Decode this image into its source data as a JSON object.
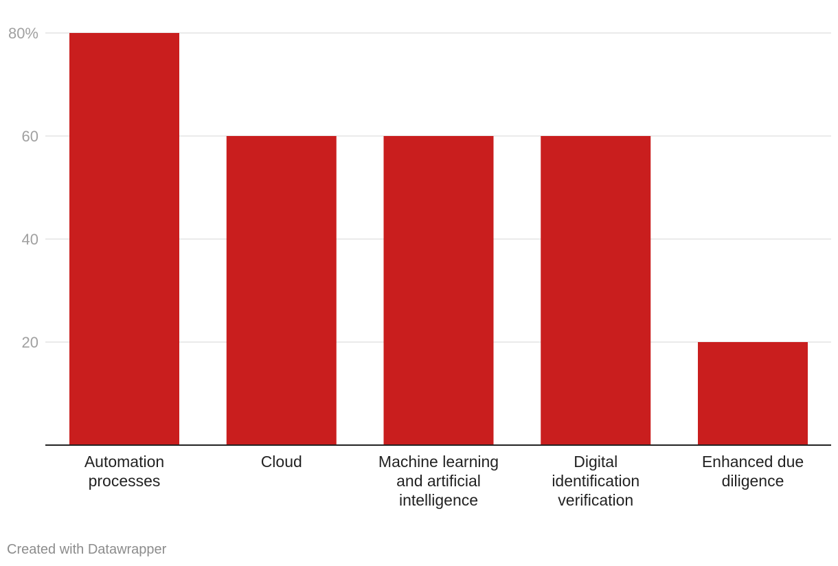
{
  "chart_data": {
    "type": "bar",
    "title": "",
    "xlabel": "",
    "ylabel": "",
    "categories": [
      [
        "Automation",
        "processes"
      ],
      [
        "Cloud"
      ],
      [
        "Machine learning",
        "and artificial",
        "intelligence"
      ],
      [
        "Digital",
        "identification",
        "verification"
      ],
      [
        "Enhanced due",
        "diligence"
      ]
    ],
    "values": [
      80,
      60,
      60,
      60,
      20
    ],
    "ylim": [
      0,
      80
    ],
    "yticks": [
      20,
      40,
      60,
      80
    ],
    "ytick_labels": [
      "20",
      "40",
      "60",
      "80%"
    ],
    "grid": true,
    "bar_color": "#c91e1e"
  },
  "footer": {
    "credit": "Created with Datawrapper"
  }
}
